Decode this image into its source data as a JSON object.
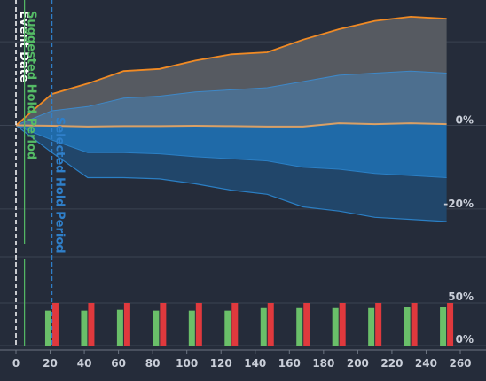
{
  "chart_data": {
    "type": "area",
    "x_ticks": [
      0,
      20,
      40,
      60,
      80,
      100,
      120,
      140,
      160,
      180,
      200,
      220,
      240,
      260
    ],
    "xlim": [
      0,
      260
    ],
    "upper_ylim": [
      -30,
      30
    ],
    "upper_y_ticks": [
      {
        "value": 0,
        "label": "0%"
      },
      {
        "value": -20,
        "label": "-20%"
      }
    ],
    "lower_ylim": [
      0,
      100
    ],
    "lower_y_ticks": [
      {
        "value": 50,
        "label": "50%"
      },
      {
        "value": 0,
        "label": "0%"
      }
    ],
    "markers": [
      {
        "label": "Event Date",
        "x": 0,
        "color": "#ffffff",
        "style": "dashed"
      },
      {
        "label": "Suggested Hold Period",
        "x": 5,
        "color": "#55bb66",
        "style": "solid"
      },
      {
        "label": "Selected Hold Period",
        "x": 21,
        "color": "#2f7fc9",
        "style": "dashed"
      }
    ],
    "band_x": [
      0,
      21,
      42,
      63,
      84,
      105,
      126,
      147,
      168,
      189,
      210,
      231,
      252
    ],
    "bands": {
      "p95": [
        0,
        7.5,
        10,
        13,
        13.5,
        15.5,
        17,
        17.5,
        20.5,
        23,
        25,
        26,
        25.5
      ],
      "p75": [
        0,
        3.5,
        4.5,
        6.5,
        7,
        8,
        8.5,
        9,
        10.5,
        12,
        12.5,
        13,
        12.5
      ],
      "median": [
        0,
        -0.1,
        -0.3,
        -0.2,
        -0.2,
        -0.1,
        -0.2,
        -0.3,
        -0.3,
        0.5,
        0.3,
        0.5,
        0.3
      ],
      "p25": [
        0,
        -3.5,
        -6.5,
        -6.5,
        -6.8,
        -7.5,
        -8,
        -8.5,
        -10,
        -10.5,
        -11.5,
        -12,
        -12.5
      ],
      "p5": [
        0,
        -6.5,
        -12.5,
        -12.5,
        -12.8,
        -14,
        -15.5,
        -16.5,
        -19.5,
        -20.5,
        -22,
        -22.5,
        -23
      ]
    },
    "bar_x": [
      21,
      42,
      63,
      84,
      105,
      126,
      147,
      168,
      189,
      210,
      231,
      252
    ],
    "series": [
      {
        "values": [
          41,
          41,
          42,
          41,
          41,
          41,
          44,
          44,
          44,
          44,
          45,
          45
        ],
        "color": "#6abf69"
      },
      {
        "values": [
          50,
          50,
          50,
          50,
          50,
          50,
          50,
          50,
          50,
          50,
          50,
          50
        ],
        "color": "#e0393d"
      }
    ]
  }
}
